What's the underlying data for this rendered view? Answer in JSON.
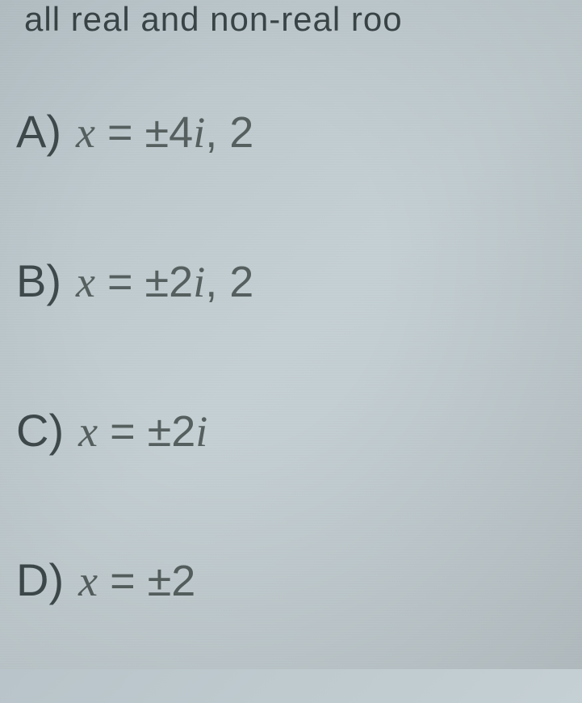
{
  "header": {
    "fragment_text": "all real and non-real roo"
  },
  "options": {
    "a": {
      "label": "A)",
      "variable": "x",
      "equals": " = ",
      "plusminus": "±",
      "coefficient": "4",
      "imaginary": "i",
      "suffix": ", 2"
    },
    "b": {
      "label": "B)",
      "variable": "x",
      "equals": " = ",
      "plusminus": "±",
      "coefficient": "2",
      "imaginary": "i",
      "suffix": ", 2"
    },
    "c": {
      "label": "C)",
      "variable": "x",
      "equals": " = ",
      "plusminus": "±",
      "coefficient": "2",
      "imaginary": "i",
      "suffix": ""
    },
    "d": {
      "label": "D)",
      "variable": "x",
      "equals": " = ",
      "plusminus": "±",
      "coefficient": "2",
      "imaginary": "",
      "suffix": ""
    }
  },
  "styling": {
    "background_gradient_start": "#b8c4c9",
    "background_gradient_end": "#bfc9cd",
    "text_color_label": "#3f4a4d",
    "text_color_expression": "#56605f",
    "label_fontsize": 56,
    "expression_fontsize": 54,
    "row_spacing": 120
  }
}
